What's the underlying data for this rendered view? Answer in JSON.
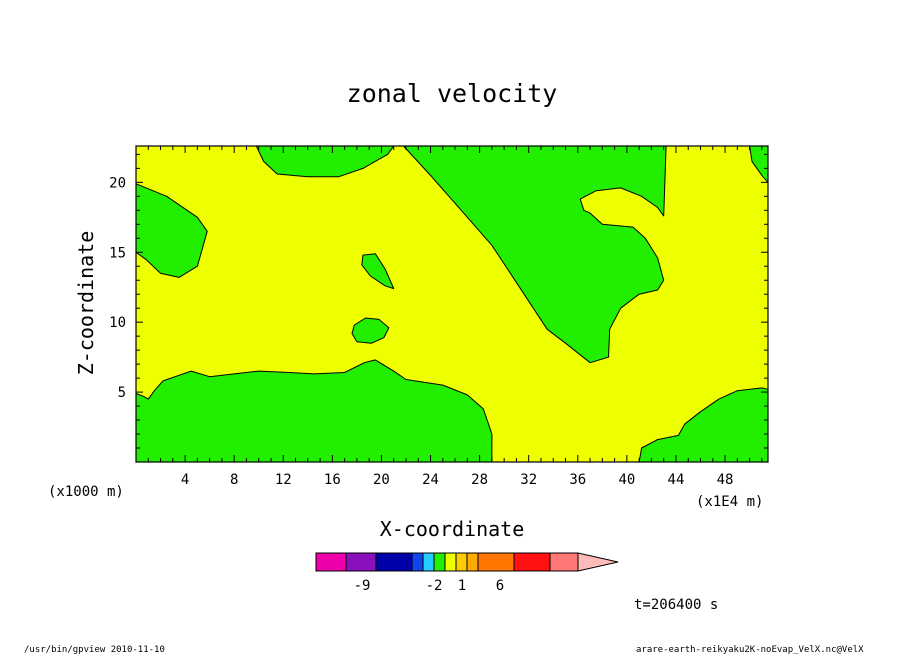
{
  "chart_data": {
    "type": "heatmap",
    "title": "zonal velocity",
    "xlabel": "X-coordinate",
    "ylabel": "Z-coordinate",
    "x_unit": "(x1E4 m)",
    "z_unit": "(x1000 m)",
    "xlim": [
      0,
      51.5
    ],
    "ylim": [
      0,
      22.6
    ],
    "x_ticks": [
      "4",
      "8",
      "12",
      "16",
      "20",
      "24",
      "28",
      "32",
      "36",
      "40",
      "44",
      "48"
    ],
    "y_ticks": [
      "5",
      "10",
      "15",
      "20"
    ],
    "background_level_color": "#eeff00",
    "regions": [
      {
        "color": "#22ee00",
        "label": "top-left",
        "points": [
          [
            0,
            19.9
          ],
          [
            2.5,
            19
          ],
          [
            5,
            17.5
          ],
          [
            5.8,
            16.5
          ],
          [
            5,
            14
          ],
          [
            3.5,
            13.2
          ],
          [
            2,
            13.5
          ],
          [
            0.8,
            14.5
          ],
          [
            0,
            15
          ]
        ]
      },
      {
        "color": "#22ee00",
        "label": "top-center",
        "points": [
          [
            9.8,
            22.6
          ],
          [
            10.4,
            21.5
          ],
          [
            11.5,
            20.6
          ],
          [
            14,
            20.4
          ],
          [
            16.5,
            20.4
          ],
          [
            18.5,
            21
          ],
          [
            20.5,
            22
          ],
          [
            21,
            22.6
          ]
        ]
      },
      {
        "color": "#22ee00",
        "label": "top-right-corner",
        "points": [
          [
            50,
            22.6
          ],
          [
            50.2,
            21.5
          ],
          [
            51,
            20.5
          ],
          [
            51.5,
            20
          ],
          [
            51.5,
            22.6
          ]
        ]
      },
      {
        "color": "#22ee00",
        "label": "top-right-cap",
        "points": [
          [
            25.5,
            22.6
          ],
          [
            25.8,
            21.6
          ],
          [
            27.5,
            20.8
          ],
          [
            30.5,
            20.6
          ],
          [
            32.5,
            20.9
          ],
          [
            34,
            21.6
          ],
          [
            34.4,
            22.6
          ]
        ]
      },
      {
        "color": "#22ee00",
        "label": "center-right",
        "points": [
          [
            21.8,
            22.6
          ],
          [
            24,
            20.5
          ],
          [
            26,
            18.5
          ],
          [
            27.5,
            17
          ],
          [
            29,
            15.5
          ],
          [
            30.5,
            13.5
          ],
          [
            32,
            11.5
          ],
          [
            33.5,
            9.5
          ],
          [
            35,
            8.5
          ],
          [
            37,
            7.1
          ],
          [
            38.5,
            7.5
          ],
          [
            38.6,
            9.5
          ],
          [
            39.5,
            11
          ],
          [
            41,
            12
          ],
          [
            42.5,
            12.3
          ],
          [
            43,
            13
          ],
          [
            42.5,
            14.6
          ],
          [
            41.5,
            16
          ],
          [
            40.5,
            16.8
          ],
          [
            38,
            17
          ],
          [
            37,
            17.8
          ],
          [
            36.5,
            18
          ],
          [
            36.2,
            18.8
          ],
          [
            37.5,
            19.4
          ],
          [
            39.5,
            19.6
          ],
          [
            41.2,
            19
          ],
          [
            42.5,
            18.2
          ],
          [
            43,
            17.6
          ],
          [
            43.2,
            22.6
          ]
        ]
      },
      {
        "color": "#22ee00",
        "label": "blob-upper",
        "points": [
          [
            18.5,
            14.8
          ],
          [
            19.5,
            14.9
          ],
          [
            20.3,
            13.8
          ],
          [
            21,
            12.4
          ],
          [
            20.3,
            12.6
          ],
          [
            19.1,
            13.3
          ],
          [
            18.4,
            14.1
          ]
        ]
      },
      {
        "color": "#22ee00",
        "label": "blob-lower",
        "points": [
          [
            17.8,
            9.8
          ],
          [
            18.7,
            10.3
          ],
          [
            19.8,
            10.2
          ],
          [
            20.6,
            9.6
          ],
          [
            20.2,
            8.9
          ],
          [
            19.2,
            8.5
          ],
          [
            18,
            8.6
          ],
          [
            17.6,
            9.2
          ]
        ]
      },
      {
        "color": "#22ee00",
        "label": "bottom-left",
        "points": [
          [
            0,
            0
          ],
          [
            0,
            4.9
          ],
          [
            0.6,
            4.7
          ],
          [
            1,
            4.5
          ],
          [
            1.5,
            5.1
          ],
          [
            2.2,
            5.8
          ],
          [
            3.5,
            6.2
          ],
          [
            4.5,
            6.5
          ],
          [
            6,
            6.1
          ],
          [
            8,
            6.3
          ],
          [
            10,
            6.5
          ],
          [
            12.5,
            6.4
          ],
          [
            14.5,
            6.3
          ],
          [
            17,
            6.4
          ],
          [
            18.6,
            7.1
          ],
          [
            19.5,
            7.3
          ],
          [
            21,
            6.5
          ],
          [
            22,
            5.9
          ],
          [
            25,
            5.5
          ],
          [
            27,
            4.8
          ],
          [
            28.3,
            3.8
          ],
          [
            29,
            2
          ],
          [
            29,
            0
          ]
        ]
      },
      {
        "color": "#22ee00",
        "label": "bottom-right",
        "points": [
          [
            41,
            0
          ],
          [
            41.2,
            1
          ],
          [
            42.5,
            1.6
          ],
          [
            44.2,
            1.9
          ],
          [
            44.7,
            2.7
          ],
          [
            46,
            3.6
          ],
          [
            47.5,
            4.5
          ],
          [
            49,
            5.1
          ],
          [
            51,
            5.3
          ],
          [
            51.5,
            5.2
          ],
          [
            51.5,
            0
          ]
        ]
      }
    ],
    "colorbar": {
      "colors": [
        "#ee00aa",
        "#8811bb",
        "#0000aa",
        "#1144ee",
        "#22ccff",
        "#22ee00",
        "#eeff00",
        "#ffcc00",
        "#ffaa00",
        "#ff7700",
        "#ff1111",
        "#ff7777",
        "#ffbbbb"
      ],
      "tick_labels": [
        "-9",
        "-2",
        "1",
        "6"
      ]
    },
    "grid": false,
    "legend": "bottom"
  },
  "annotations": {
    "time": "t=206400 s",
    "footer_left": "/usr/bin/gpview   2010-11-10",
    "footer_right": "arare-earth-reikyaku2K-noEvap_VelX.nc@VelX"
  }
}
